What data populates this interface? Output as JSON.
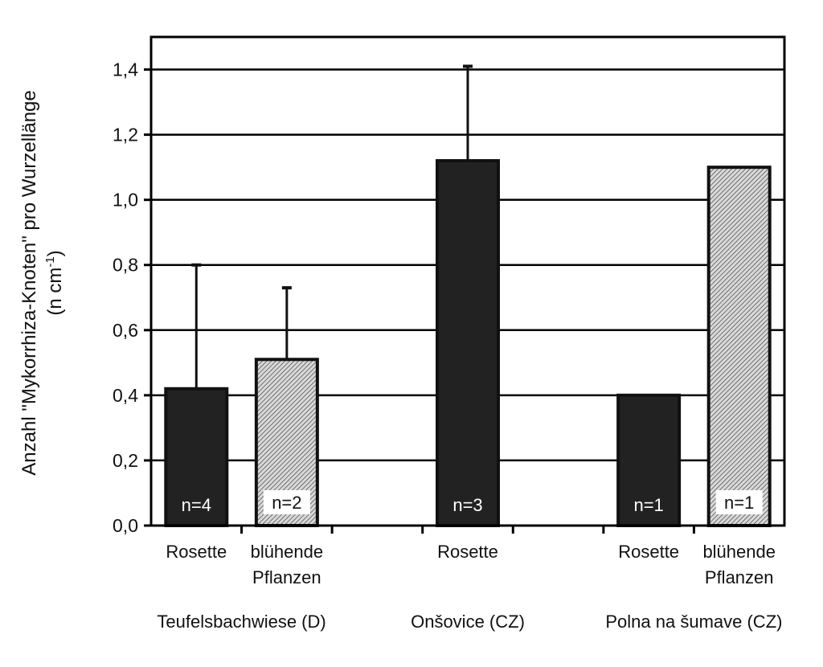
{
  "chart_data": {
    "type": "bar",
    "ylabel_line1": "Anzahl \"Mykorrhiza-Knoten\" pro Wurzellänge",
    "ylabel_line2_prefix": "(n cm",
    "ylabel_line2_sup": "-1",
    "ylabel_line2_suffix": ")",
    "ylim": [
      0,
      1.5
    ],
    "yticks": [
      {
        "value": 0.0,
        "label": "0,0"
      },
      {
        "value": 0.2,
        "label": "0,2"
      },
      {
        "value": 0.4,
        "label": "0,4"
      },
      {
        "value": 0.6,
        "label": "0,6"
      },
      {
        "value": 0.8,
        "label": "0,8"
      },
      {
        "value": 1.0,
        "label": "1,0"
      },
      {
        "value": 1.2,
        "label": "1,2"
      },
      {
        "value": 1.4,
        "label": "1,4"
      }
    ],
    "grid": true,
    "groups": [
      {
        "label": "Teufelsbachwiese (D)"
      },
      {
        "label": "Onšovice (CZ)"
      },
      {
        "label": "Polna na šumave (CZ)"
      }
    ],
    "bars": [
      {
        "group": 0,
        "category": [
          "Rosette"
        ],
        "value": 0.42,
        "error_upper": 0.8,
        "n_label": "n=4",
        "style": "dark"
      },
      {
        "group": 0,
        "category": [
          "blühende",
          "Pflanzen"
        ],
        "value": 0.51,
        "error_upper": 0.73,
        "n_label": "n=2",
        "style": "hatched"
      },
      {
        "group": 1,
        "category": [
          "Rosette"
        ],
        "value": 1.12,
        "error_upper": 1.41,
        "n_label": "n=3",
        "style": "dark"
      },
      {
        "group": 2,
        "category": [
          "Rosette"
        ],
        "value": 0.4,
        "error_upper": null,
        "n_label": "n=1",
        "style": "dark"
      },
      {
        "group": 2,
        "category": [
          "blühende",
          "Pflanzen"
        ],
        "value": 1.1,
        "error_upper": null,
        "n_label": "n=1",
        "style": "hatched"
      }
    ],
    "colors": {
      "dark": "#222222",
      "hatched_bg": "#d9d9d9",
      "hatched_line": "#555555",
      "frame": "#000000"
    }
  }
}
